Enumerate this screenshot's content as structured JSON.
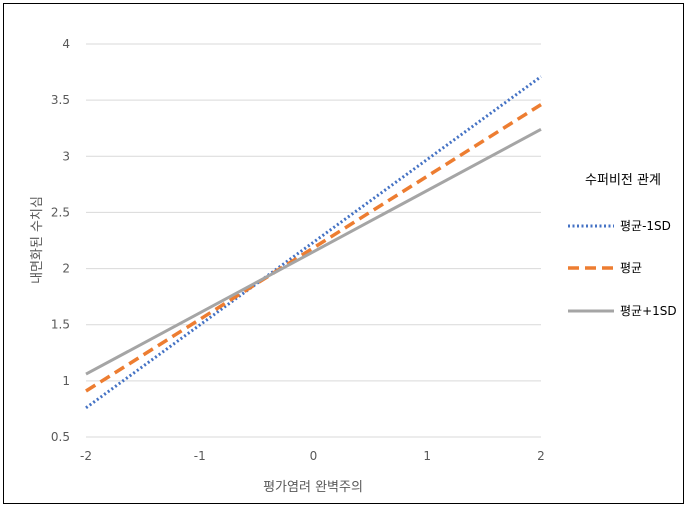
{
  "chart_data": {
    "type": "line",
    "title": "",
    "xlabel": "평가염려 완벽주의",
    "ylabel": "내면화된 수치심",
    "xlim": [
      -2,
      2
    ],
    "ylim": [
      0.5,
      4
    ],
    "x_ticks": [
      "-2",
      "-1",
      "0",
      "1",
      "2"
    ],
    "y_ticks": [
      "0.5",
      "1",
      "1.5",
      "2",
      "2.5",
      "3",
      "3.5",
      "4"
    ],
    "grid": "horizontal",
    "legend": {
      "title": "수퍼비전 관계",
      "position": "right"
    },
    "x": [
      -2,
      2
    ],
    "series": [
      {
        "name": "평균-1SD",
        "values": [
          0.76,
          3.71
        ],
        "color": "#4472c4",
        "style": "dotted"
      },
      {
        "name": "평균",
        "values": [
          0.91,
          3.46
        ],
        "color": "#ed7d31",
        "style": "dashed"
      },
      {
        "name": "평균+1SD",
        "values": [
          1.06,
          3.24
        ],
        "color": "#a5a5a5",
        "style": "solid"
      }
    ]
  }
}
